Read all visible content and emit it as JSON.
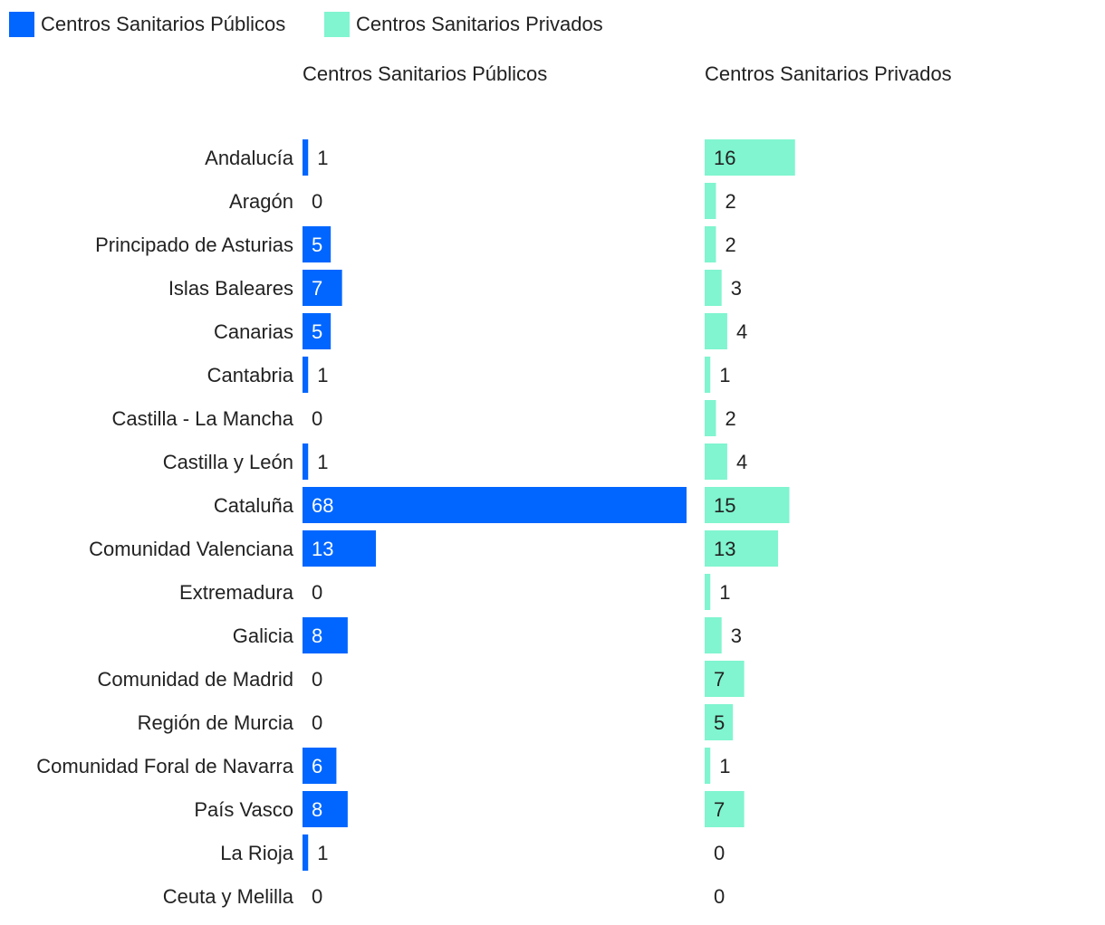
{
  "chart_data": {
    "type": "bar",
    "orientation": "horizontal",
    "layout": "small-multiples",
    "grid": false,
    "legend_position": "top-left",
    "colors": {
      "publicos": "#0066ff",
      "privados": "#80f5cf",
      "text": "#222222",
      "label_inside": "#ffffff"
    },
    "categories": [
      "Andalucía",
      "Aragón",
      "Principado de Asturias",
      "Islas Baleares",
      "Canarias",
      "Cantabria",
      "Castilla - La Mancha",
      "Castilla y León",
      "Cataluña",
      "Comunidad Valenciana",
      "Extremadura",
      "Galicia",
      "Comunidad de Madrid",
      "Región de Murcia",
      "Comunidad Foral de Navarra",
      "País Vasco",
      "La Rioja",
      "Ceuta y Melilla"
    ],
    "series": [
      {
        "name": "Centros Sanitarios Públicos",
        "values": [
          1,
          0,
          5,
          7,
          5,
          1,
          0,
          1,
          68,
          13,
          0,
          8,
          0,
          0,
          6,
          8,
          1,
          0
        ]
      },
      {
        "name": "Centros Sanitarios Privados",
        "values": [
          16,
          2,
          2,
          3,
          4,
          1,
          2,
          4,
          15,
          13,
          1,
          3,
          7,
          5,
          1,
          7,
          0,
          0
        ]
      }
    ]
  }
}
